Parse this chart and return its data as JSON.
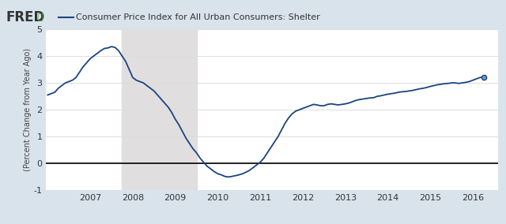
{
  "title": "Consumer Price Index for All Urban Consumers: Shelter",
  "ylabel": "(Percent Change from Year Ago)",
  "xlim_start": 2005.95,
  "xlim_end": 2016.6,
  "ylim": [
    -1.0,
    5.0
  ],
  "yticks": [
    -1,
    0,
    1,
    2,
    3,
    4,
    5
  ],
  "xticks": [
    2007,
    2008,
    2009,
    2010,
    2011,
    2012,
    2013,
    2014,
    2015,
    2016
  ],
  "recession_start": 2007.75,
  "recession_end": 2009.5,
  "bg_color": "#d9e3ec",
  "plot_bg_color": "#ffffff",
  "recession_color": "#e0dede",
  "line_color": "#1a4480",
  "zero_line_color": "#000000",
  "series": [
    [
      2006.0,
      2.55
    ],
    [
      2006.083,
      2.6
    ],
    [
      2006.167,
      2.65
    ],
    [
      2006.25,
      2.8
    ],
    [
      2006.333,
      2.9
    ],
    [
      2006.417,
      3.0
    ],
    [
      2006.5,
      3.05
    ],
    [
      2006.583,
      3.1
    ],
    [
      2006.667,
      3.2
    ],
    [
      2006.75,
      3.4
    ],
    [
      2006.833,
      3.6
    ],
    [
      2006.917,
      3.75
    ],
    [
      2007.0,
      3.9
    ],
    [
      2007.083,
      4.0
    ],
    [
      2007.167,
      4.1
    ],
    [
      2007.25,
      4.2
    ],
    [
      2007.333,
      4.28
    ],
    [
      2007.417,
      4.3
    ],
    [
      2007.5,
      4.35
    ],
    [
      2007.583,
      4.32
    ],
    [
      2007.667,
      4.2
    ],
    [
      2007.75,
      4.0
    ],
    [
      2007.833,
      3.8
    ],
    [
      2007.917,
      3.5
    ],
    [
      2008.0,
      3.2
    ],
    [
      2008.083,
      3.1
    ],
    [
      2008.167,
      3.05
    ],
    [
      2008.25,
      3.0
    ],
    [
      2008.333,
      2.9
    ],
    [
      2008.417,
      2.8
    ],
    [
      2008.5,
      2.7
    ],
    [
      2008.583,
      2.55
    ],
    [
      2008.667,
      2.4
    ],
    [
      2008.75,
      2.25
    ],
    [
      2008.833,
      2.1
    ],
    [
      2008.917,
      1.9
    ],
    [
      2009.0,
      1.65
    ],
    [
      2009.083,
      1.45
    ],
    [
      2009.167,
      1.2
    ],
    [
      2009.25,
      0.95
    ],
    [
      2009.333,
      0.75
    ],
    [
      2009.417,
      0.55
    ],
    [
      2009.5,
      0.4
    ],
    [
      2009.583,
      0.2
    ],
    [
      2009.667,
      0.05
    ],
    [
      2009.75,
      -0.1
    ],
    [
      2009.833,
      -0.2
    ],
    [
      2009.917,
      -0.3
    ],
    [
      2010.0,
      -0.38
    ],
    [
      2010.083,
      -0.42
    ],
    [
      2010.167,
      -0.48
    ],
    [
      2010.25,
      -0.5
    ],
    [
      2010.333,
      -0.48
    ],
    [
      2010.417,
      -0.45
    ],
    [
      2010.5,
      -0.42
    ],
    [
      2010.583,
      -0.38
    ],
    [
      2010.667,
      -0.32
    ],
    [
      2010.75,
      -0.25
    ],
    [
      2010.833,
      -0.15
    ],
    [
      2010.917,
      -0.05
    ],
    [
      2011.0,
      0.05
    ],
    [
      2011.083,
      0.2
    ],
    [
      2011.167,
      0.4
    ],
    [
      2011.25,
      0.6
    ],
    [
      2011.333,
      0.8
    ],
    [
      2011.417,
      1.0
    ],
    [
      2011.5,
      1.25
    ],
    [
      2011.583,
      1.5
    ],
    [
      2011.667,
      1.7
    ],
    [
      2011.75,
      1.85
    ],
    [
      2011.833,
      1.95
    ],
    [
      2011.917,
      2.0
    ],
    [
      2012.0,
      2.05
    ],
    [
      2012.083,
      2.1
    ],
    [
      2012.167,
      2.15
    ],
    [
      2012.25,
      2.2
    ],
    [
      2012.333,
      2.18
    ],
    [
      2012.417,
      2.15
    ],
    [
      2012.5,
      2.15
    ],
    [
      2012.583,
      2.2
    ],
    [
      2012.667,
      2.22
    ],
    [
      2012.75,
      2.2
    ],
    [
      2012.833,
      2.18
    ],
    [
      2012.917,
      2.2
    ],
    [
      2013.0,
      2.22
    ],
    [
      2013.083,
      2.25
    ],
    [
      2013.167,
      2.3
    ],
    [
      2013.25,
      2.35
    ],
    [
      2013.333,
      2.38
    ],
    [
      2013.417,
      2.4
    ],
    [
      2013.5,
      2.42
    ],
    [
      2013.583,
      2.44
    ],
    [
      2013.667,
      2.45
    ],
    [
      2013.75,
      2.5
    ],
    [
      2013.833,
      2.52
    ],
    [
      2013.917,
      2.55
    ],
    [
      2014.0,
      2.58
    ],
    [
      2014.083,
      2.6
    ],
    [
      2014.167,
      2.62
    ],
    [
      2014.25,
      2.65
    ],
    [
      2014.333,
      2.67
    ],
    [
      2014.417,
      2.68
    ],
    [
      2014.5,
      2.7
    ],
    [
      2014.583,
      2.72
    ],
    [
      2014.667,
      2.75
    ],
    [
      2014.75,
      2.78
    ],
    [
      2014.833,
      2.8
    ],
    [
      2014.917,
      2.83
    ],
    [
      2015.0,
      2.87
    ],
    [
      2015.083,
      2.9
    ],
    [
      2015.167,
      2.93
    ],
    [
      2015.25,
      2.95
    ],
    [
      2015.333,
      2.97
    ],
    [
      2015.417,
      2.98
    ],
    [
      2015.5,
      3.0
    ],
    [
      2015.583,
      3.0
    ],
    [
      2015.667,
      2.98
    ],
    [
      2015.75,
      3.0
    ],
    [
      2015.833,
      3.02
    ],
    [
      2015.917,
      3.05
    ],
    [
      2016.0,
      3.1
    ],
    [
      2016.083,
      3.15
    ],
    [
      2016.167,
      3.2
    ],
    [
      2016.25,
      3.22
    ]
  ]
}
